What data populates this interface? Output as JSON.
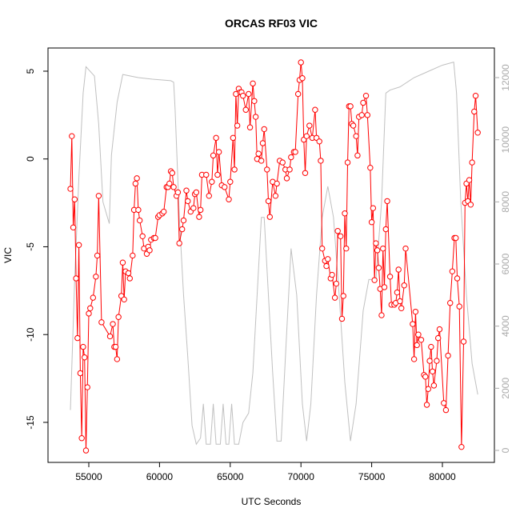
{
  "chart_data": {
    "type": "line",
    "title": "ORCAS RF03 VIC",
    "xlabel": "UTC Seconds",
    "ylabel": "VIC",
    "xlim": [
      52115,
      83677
    ],
    "xticks": [
      55000,
      60000,
      65000,
      70000,
      75000,
      80000
    ],
    "ylim": [
      -17.28,
      6.32
    ],
    "yticks": [
      -15,
      -10,
      -5,
      0,
      5
    ],
    "y2lim": [
      -386,
      12953
    ],
    "y2ticks": [
      0,
      2000,
      4000,
      6000,
      8000,
      10000,
      12000
    ],
    "grid": false,
    "series": [
      {
        "color": "#ff0000",
        "markers": true,
        "x": [
          53700,
          53800,
          53900,
          54000,
          54100,
          54200,
          54300,
          54400,
          54500,
          54600,
          54700,
          54800,
          54900,
          55000,
          55100,
          55300,
          55500,
          55600,
          55700,
          55900,
          56500,
          56700,
          56800,
          56900,
          57000,
          57100,
          57300,
          57400,
          57500,
          57600,
          57800,
          57900,
          58100,
          58200,
          58300,
          58400,
          58500,
          58600,
          58800,
          58900,
          59100,
          59200,
          59300,
          59400,
          59600,
          59700,
          59900,
          60000,
          60200,
          60300,
          60500,
          60600,
          60700,
          60800,
          60900,
          61000,
          61200,
          61300,
          61400,
          61600,
          61700,
          61900,
          62000,
          62200,
          62400,
          62500,
          62600,
          62800,
          62900,
          63000,
          63300,
          63500,
          63700,
          63800,
          64000,
          64100,
          64200,
          64400,
          64600,
          64900,
          65000,
          65200,
          65300,
          65400,
          65500,
          65600,
          65700,
          65800,
          65900,
          66100,
          66300,
          66400,
          66600,
          66700,
          66800,
          66900,
          67000,
          67200,
          67300,
          67400,
          67600,
          67700,
          67800,
          68000,
          68200,
          68300,
          68500,
          68700,
          68900,
          69000,
          69200,
          69300,
          69500,
          69600,
          69800,
          69900,
          70000,
          70100,
          70200,
          70300,
          70400,
          70600,
          70800,
          71000,
          71100,
          71300,
          71400,
          71500,
          71700,
          71800,
          71900,
          72100,
          72200,
          72400,
          72500,
          72600,
          72800,
          72900,
          73000,
          73100,
          73200,
          73300,
          73400,
          73500,
          73600,
          73700,
          73900,
          74000,
          74100,
          74300,
          74400,
          74600,
          74700,
          74900,
          75000,
          75100,
          75200,
          75300,
          75400,
          75500,
          75600,
          75700,
          75800,
          75900,
          76000,
          76100,
          76300,
          76400,
          76600,
          76700,
          76800,
          76900,
          77000,
          77100,
          77300,
          77400,
          77900,
          78000,
          78100,
          78200,
          78300,
          78500,
          78700,
          78800,
          78900,
          79000,
          79100,
          79200,
          79300,
          79400,
          79600,
          79700,
          79800,
          80100,
          80250,
          80400,
          80550,
          80700,
          80850,
          80950,
          81050,
          81200,
          81350,
          81500,
          81600,
          81700,
          81800,
          81900,
          82000,
          82100,
          82250,
          82350,
          82500
        ],
        "values": [
          -1.7,
          1.3,
          -3.9,
          -2.3,
          -6.8,
          -10.2,
          -4.9,
          -12.2,
          -15.9,
          -10.7,
          -11.3,
          -16.6,
          -13.0,
          -8.8,
          -8.5,
          -7.9,
          -6.7,
          -5.5,
          -2.1,
          -9.3,
          -10.1,
          -9.4,
          -10.7,
          -10.7,
          -11.4,
          -9.0,
          -7.8,
          -5.9,
          -8.0,
          -6.4,
          -6.5,
          -6.8,
          -5.5,
          -2.9,
          -1.4,
          -1.1,
          -2.9,
          -3.5,
          -4.4,
          -5.1,
          -5.4,
          -5.0,
          -5.2,
          -4.6,
          -4.5,
          -4.5,
          -3.3,
          -3.2,
          -3.1,
          -3.0,
          -1.6,
          -1.6,
          -1.4,
          -0.7,
          -0.8,
          -1.6,
          -2.1,
          -1.9,
          -4.8,
          -4.0,
          -3.5,
          -1.8,
          -2.4,
          -3.0,
          -2.8,
          -2.0,
          -1.9,
          -3.3,
          -2.9,
          -0.9,
          -0.9,
          -2.1,
          -1.3,
          0.2,
          1.2,
          -0.9,
          0.4,
          -1.5,
          -1.6,
          -2.3,
          -1.3,
          1.2,
          -0.6,
          3.7,
          1.9,
          4.0,
          3.8,
          3.8,
          3.6,
          2.8,
          3.7,
          1.8,
          4.3,
          3.3,
          2.4,
          0.0,
          0.3,
          -0.1,
          0.9,
          1.7,
          -0.6,
          -2.4,
          -3.3,
          -1.3,
          -2.1,
          -1.4,
          -0.1,
          -0.2,
          -0.6,
          -1.1,
          -0.6,
          0.1,
          0.4,
          0.4,
          3.7,
          4.5,
          5.5,
          4.6,
          1.1,
          -0.8,
          1.3,
          1.9,
          1.2,
          2.8,
          1.2,
          1.0,
          -0.1,
          -5.1,
          -5.8,
          -6.1,
          -5.7,
          -6.8,
          -6.6,
          -7.9,
          -7.1,
          -4.1,
          -4.4,
          -9.1,
          -7.8,
          -3.1,
          -5.1,
          -0.2,
          3.0,
          3.0,
          2.0,
          1.9,
          1.3,
          0.2,
          2.4,
          2.5,
          3.2,
          3.6,
          2.5,
          -0.5,
          -3.6,
          -2.8,
          -6.9,
          -4.8,
          -5.2,
          -6.2,
          -7.4,
          -8.9,
          -5.1,
          -7.3,
          -4.0,
          -2.4,
          -6.7,
          -8.3,
          -8.3,
          -8.2,
          -7.6,
          -6.3,
          -8.1,
          -8.5,
          -7.2,
          -5.1,
          -9.4,
          -11.4,
          -8.7,
          -10.6,
          -10.0,
          -10.3,
          -12.3,
          -12.4,
          -14.0,
          -13.1,
          -11.5,
          -10.7,
          -12.1,
          -12.9,
          -11.5,
          -10.2,
          -9.7,
          -13.9,
          -14.3,
          -11.2,
          -8.2,
          -6.4,
          -4.5,
          -4.5,
          -6.8,
          -8.4,
          -16.4,
          -10.4,
          -2.5,
          -1.4,
          -2.4,
          -1.2,
          -2.6,
          -0.2,
          2.7,
          3.6,
          1.5
        ]
      },
      {
        "color": "#c0c0c0",
        "axis": "y2",
        "markers": false,
        "x": [
          53700,
          54000,
          54300,
          54600,
          54800,
          55400,
          55700,
          56000,
          56450,
          56600,
          57000,
          57400,
          58500,
          59500,
          60800,
          61000,
          61100,
          61400,
          61700,
          62000,
          62300,
          62600,
          62900,
          63100,
          63300,
          63600,
          63800,
          64000,
          64300,
          64500,
          64700,
          64900,
          65100,
          65300,
          65600,
          65900,
          66300,
          66600,
          66900,
          67200,
          67400,
          67700,
          68000,
          68300,
          68600,
          68900,
          69300,
          69700,
          70100,
          70400,
          70700,
          71100,
          71500,
          71900,
          72300,
          72700,
          73100,
          73500,
          73900,
          74400,
          74800,
          75300,
          75700,
          76000,
          76300,
          77000,
          78000,
          79000,
          80000,
          80800,
          81000,
          81300,
          81700,
          82100,
          82500
        ],
        "values": [
          1300,
          5500,
          8800,
          11500,
          12350,
          12050,
          10500,
          8000,
          7300,
          9500,
          11200,
          12100,
          12000,
          11950,
          11900,
          11850,
          11000,
          7500,
          5000,
          3000,
          800,
          200,
          400,
          1500,
          200,
          200,
          1500,
          200,
          200,
          1500,
          200,
          200,
          1500,
          200,
          200,
          900,
          1200,
          2500,
          5000,
          7500,
          7500,
          5000,
          2500,
          300,
          300,
          3000,
          6500,
          5000,
          1500,
          300,
          1500,
          5000,
          7500,
          8500,
          7500,
          5000,
          2200,
          300,
          1500,
          4500,
          5500,
          5500,
          8000,
          11500,
          11600,
          11700,
          12000,
          12200,
          12400,
          12500,
          11500,
          8000,
          5000,
          2800,
          1800
        ]
      }
    ]
  }
}
